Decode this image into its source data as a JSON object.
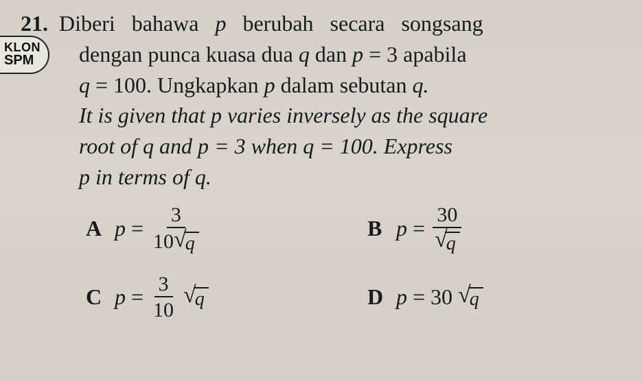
{
  "question": {
    "number": "21.",
    "line1_a": "Diberi",
    "line1_b": "bahawa",
    "line1_var_p": "p",
    "line1_c": "berubah",
    "line1_d": "secara",
    "line1_e": "songsang",
    "line2_a": "dengan punca kuasa dua",
    "line2_var_q": "q",
    "line2_b": "dan",
    "line2_var_p": "p",
    "line2_c": "= 3 apabila",
    "line3_a": "q",
    "line3_b": "= 100. Ungkapkan",
    "line3_var_p": "p",
    "line3_c": "dalam sebutan",
    "line3_var_q": "q.",
    "line4": "It is given that p varies inversely as the square",
    "line5": "root of q and p = 3 when q = 100. Express",
    "line6": "p in terms of q."
  },
  "badge": {
    "line1": "KLON",
    "line2": "SPM"
  },
  "options": {
    "A": {
      "letter": "A",
      "lhs": "p",
      "eq": "=",
      "num": "3",
      "den_coeff": "10",
      "den_rad": "q"
    },
    "B": {
      "letter": "B",
      "lhs": "p",
      "eq": "=",
      "num": "30",
      "den_rad": "q"
    },
    "C": {
      "letter": "C",
      "lhs": "p",
      "eq": "=",
      "num": "3",
      "den": "10",
      "rad": "q"
    },
    "D": {
      "letter": "D",
      "lhs": "p",
      "eq": "=",
      "coeff": "30",
      "rad": "q"
    }
  },
  "colors": {
    "text": "#1a1a1a",
    "bg": "#d6d2c9",
    "rule": "#1a1a1a"
  }
}
